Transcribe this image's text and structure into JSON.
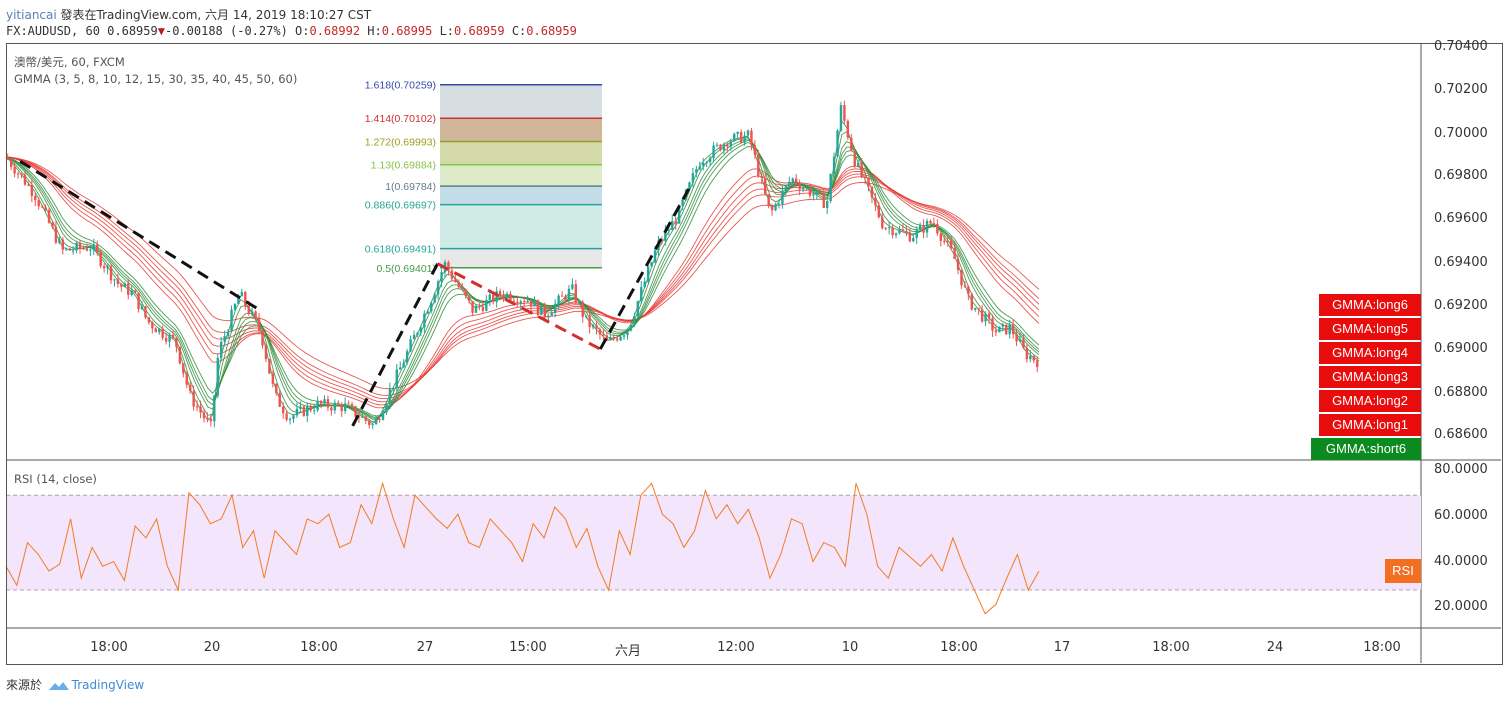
{
  "header": {
    "user": "yitiancai",
    "published": "發表在TradingView.com, 六月 14, 2019 18:10:27 CST",
    "symbol": "FX:AUDUSD, 60",
    "last": "0.68959",
    "change": "-0.00188",
    "change_pct": "(-0.27%)",
    "open_label": "O:",
    "open": "0.68992",
    "high_label": "H:",
    "high": "0.68995",
    "low_label": "L:",
    "low": "0.68959",
    "close_label": "C:",
    "close": "0.68959"
  },
  "legend": {
    "title": "澳幣/美元, 60, FXCM",
    "indicator": "GMMA (3, 5, 8, 10, 12, 15, 30, 35, 40, 45, 50, 60)"
  },
  "rsi_legend": "RSI (14, close)",
  "price_axis": [
    "0.70400",
    "0.70200",
    "0.70000",
    "0.69800",
    "0.69600",
    "0.69400",
    "0.69200",
    "0.69000",
    "0.68800",
    "0.68600"
  ],
  "rsi_axis": [
    "80.0000",
    "60.0000",
    "40.0000",
    "20.0000"
  ],
  "time_axis": [
    "18:00",
    "20",
    "18:00",
    "27",
    "15:00",
    "六月",
    "12:00",
    "10",
    "18:00",
    "17",
    "18:00",
    "24",
    "18:00"
  ],
  "badges": [
    "GMMA:long6",
    "GMMA:long5",
    "GMMA:long4",
    "GMMA:long3",
    "GMMA:long2",
    "GMMA:long1",
    "GMMA:short6"
  ],
  "rsi_badge": "RSI",
  "footer": {
    "source": "來源於",
    "brand": "TradingView"
  },
  "colors": {
    "up": "#26a69a",
    "down": "#ef5350",
    "short_ema": "#2e8b3a",
    "long_ema": "#e53935",
    "rsi": "#f47b20",
    "rsi_band": "#f3e5fb"
  },
  "chart_data": [
    {
      "type": "candlestick",
      "title": "澳幣/美元, 60, FXCM",
      "ylim": [
        0.685,
        0.7045
      ],
      "close_path": [
        {
          "t": 0,
          "v": 0.6992
        },
        {
          "t": 0.02,
          "v": 0.6975
        },
        {
          "t": 0.04,
          "v": 0.6948
        },
        {
          "t": 0.06,
          "v": 0.695
        },
        {
          "t": 0.08,
          "v": 0.6932
        },
        {
          "t": 0.09,
          "v": 0.6928
        },
        {
          "t": 0.1,
          "v": 0.6915
        },
        {
          "t": 0.12,
          "v": 0.6905
        },
        {
          "t": 0.13,
          "v": 0.688
        },
        {
          "t": 0.145,
          "v": 0.6865
        },
        {
          "t": 0.15,
          "v": 0.69
        },
        {
          "t": 0.165,
          "v": 0.6928
        },
        {
          "t": 0.18,
          "v": 0.691
        },
        {
          "t": 0.19,
          "v": 0.688
        },
        {
          "t": 0.2,
          "v": 0.687
        },
        {
          "t": 0.22,
          "v": 0.6876
        },
        {
          "t": 0.24,
          "v": 0.6875
        },
        {
          "t": 0.26,
          "v": 0.6866
        },
        {
          "t": 0.28,
          "v": 0.6895
        },
        {
          "t": 0.3,
          "v": 0.6925
        },
        {
          "t": 0.31,
          "v": 0.6942
        },
        {
          "t": 0.33,
          "v": 0.692
        },
        {
          "t": 0.35,
          "v": 0.6928
        },
        {
          "t": 0.37,
          "v": 0.6925
        },
        {
          "t": 0.38,
          "v": 0.6918
        },
        {
          "t": 0.4,
          "v": 0.693
        },
        {
          "t": 0.41,
          "v": 0.6915
        },
        {
          "t": 0.425,
          "v": 0.6905
        },
        {
          "t": 0.44,
          "v": 0.6912
        },
        {
          "t": 0.46,
          "v": 0.695
        },
        {
          "t": 0.475,
          "v": 0.6965
        },
        {
          "t": 0.49,
          "v": 0.699
        },
        {
          "t": 0.51,
          "v": 0.7
        },
        {
          "t": 0.525,
          "v": 0.7002
        },
        {
          "t": 0.54,
          "v": 0.6965
        },
        {
          "t": 0.555,
          "v": 0.6982
        },
        {
          "t": 0.57,
          "v": 0.6975
        },
        {
          "t": 0.58,
          "v": 0.697
        },
        {
          "t": 0.59,
          "v": 0.7015
        },
        {
          "t": 0.6,
          "v": 0.699
        },
        {
          "t": 0.62,
          "v": 0.696
        },
        {
          "t": 0.64,
          "v": 0.6955
        },
        {
          "t": 0.655,
          "v": 0.6962
        },
        {
          "t": 0.67,
          "v": 0.6945
        },
        {
          "t": 0.68,
          "v": 0.6925
        },
        {
          "t": 0.7,
          "v": 0.691
        },
        {
          "t": 0.71,
          "v": 0.6912
        },
        {
          "t": 0.72,
          "v": 0.69
        },
        {
          "t": 0.73,
          "v": 0.6896
        }
      ],
      "fibonacci": [
        {
          "label": "1.618(0.70259)",
          "value": 0.70259,
          "color": "#3949ab"
        },
        {
          "label": "1.414(0.70102)",
          "value": 0.70102,
          "color": "#d32f2f"
        },
        {
          "label": "1.272(0.69993)",
          "value": 0.69993,
          "color": "#9e9d24"
        },
        {
          "label": "1.13(0.69884)",
          "value": 0.69884,
          "color": "#8bc34a"
        },
        {
          "label": "1(0.69784)",
          "value": 0.69784,
          "color": "#607d8b"
        },
        {
          "label": "0.886(0.69697)",
          "value": 0.69697,
          "color": "#26a69a"
        },
        {
          "label": "0.618(0.69491)",
          "value": 0.69491,
          "color": "#26a69a"
        },
        {
          "label": "0.5(0.69401)",
          "value": 0.69401,
          "color": "#43a047"
        }
      ]
    },
    {
      "type": "line",
      "title": "RSI (14, close)",
      "ylim": [
        14,
        84
      ],
      "band": [
        30,
        70
      ],
      "series": [
        {
          "name": "RSI",
          "values": [
            40,
            32,
            50,
            45,
            38,
            41,
            60,
            35,
            48,
            40,
            42,
            34,
            57,
            52,
            60,
            40,
            30,
            71,
            66,
            58,
            60,
            70,
            48,
            55,
            35,
            55,
            50,
            45,
            60,
            58,
            62,
            48,
            50,
            66,
            58,
            75,
            60,
            48,
            70,
            65,
            60,
            56,
            62,
            50,
            48,
            60,
            55,
            50,
            42,
            58,
            52,
            65,
            60,
            48,
            56,
            40,
            30,
            55,
            45,
            70,
            75,
            62,
            58,
            48,
            55,
            72,
            60,
            66,
            58,
            64,
            52,
            35,
            45,
            60,
            58,
            42,
            50,
            48,
            40,
            75,
            62,
            40,
            35,
            48,
            44,
            40,
            45,
            38,
            52,
            40,
            30,
            20,
            24,
            35,
            45,
            30,
            38
          ]
        }
      ]
    }
  ]
}
